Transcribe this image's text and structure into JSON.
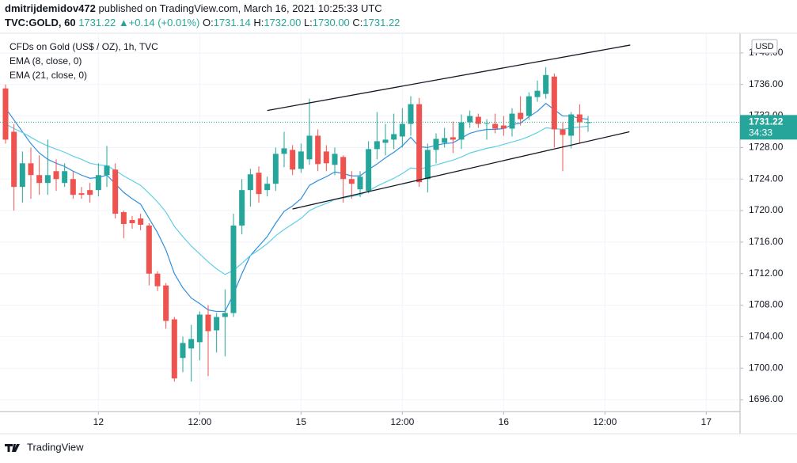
{
  "header": {
    "publisher": "dmitrijdemidov472",
    "published": "published on TradingView.com, March 16, 2021 10:25:33 UTC",
    "quote": {
      "symbol": "TVC:GOLD, 60",
      "last": "1731.22",
      "arrow": "▲",
      "change": "+0.14 (+0.01%)",
      "ohlc": [
        {
          "label": "O:",
          "value": "1731.14"
        },
        {
          "label": "H:",
          "value": "1732.00"
        },
        {
          "label": "L:",
          "value": "1730.00"
        },
        {
          "label": "C:",
          "value": "1731.22"
        }
      ]
    }
  },
  "footer": {
    "brand": "TradingView"
  },
  "chart_data": {
    "type": "candlestick",
    "title": "CFDs on Gold (US$ / OZ), 1h, TVC",
    "currency": "USD",
    "up_color": "#26a69a",
    "down_color": "#ef5350",
    "categories": [
      null,
      null,
      null,
      null,
      null,
      null,
      null,
      null,
      null,
      null,
      null,
      "12",
      null,
      null,
      null,
      null,
      null,
      null,
      null,
      null,
      null,
      null,
      null,
      "12:00",
      null,
      null,
      null,
      null,
      null,
      null,
      null,
      null,
      null,
      null,
      null,
      "15",
      null,
      null,
      null,
      null,
      null,
      null,
      null,
      null,
      null,
      null,
      null,
      "12:00",
      null,
      null,
      null,
      null,
      null,
      null,
      null,
      null,
      null,
      null,
      null,
      "16",
      null,
      null,
      null,
      null,
      null,
      null,
      null,
      null,
      null,
      null,
      null,
      "12:00",
      null,
      null,
      null,
      null,
      null,
      null,
      null,
      null,
      null,
      null,
      null,
      "17",
      null,
      null,
      null
    ],
    "open": [
      1735.5,
      1730,
      1723,
      1726,
      1724.5,
      1723.5,
      1725,
      1723.5,
      1724,
      1722.2,
      1722.6,
      1722.6,
      1724.5,
      1725.2,
      1719.8,
      1718.8,
      1719,
      1718.1,
      1712,
      1710.5,
      1706.2,
      1701.3,
      1702.5,
      1703.3,
      1706.8,
      1704.8,
      1706.5,
      1707,
      1718.1,
      1722.6,
      1724.8,
      1722.6,
      1723.4,
      1727.2,
      1727.7,
      1725.3,
      1726.5,
      1729.5,
      1727.5,
      1725.8,
      1726.8,
      1724,
      1722.7,
      1722.5,
      1727.8,
      1728.6,
      1729,
      1729.4,
      1731,
      1733.5,
      1724,
      1727.7,
      1728.6,
      1729.3,
      1729,
      1731.2,
      1731.9,
      1731,
      1731,
      1730.8,
      1730.4,
      1732.4,
      1732,
      1734.4,
      1734.8,
      1737,
      1730.3,
      1729.5,
      1732.2,
      1731.1,
      null,
      null,
      null,
      null,
      null,
      null,
      null,
      null,
      null,
      null,
      null,
      null,
      null,
      null,
      null,
      null,
      null
    ],
    "high": [
      1736,
      1731,
      1727.5,
      1728,
      1727,
      1729,
      1726.5,
      1726,
      1725,
      1723,
      1723.5,
      1726,
      1728.2,
      1726,
      1720,
      1719.3,
      1719.6,
      1718.4,
      1712.3,
      1710.8,
      1706.5,
      1704,
      1705.5,
      1707.2,
      1708,
      1707,
      1710,
      1719.6,
      1724,
      1725.3,
      1725.6,
      1724.3,
      1728,
      1730,
      1728.3,
      1728.5,
      1734.2,
      1730.3,
      1728.3,
      1728,
      1727,
      1725,
      1725,
      1728.8,
      1732.5,
      1731,
      1732.3,
      1733,
      1734.5,
      1734.3,
      1728.5,
      1729.8,
      1730.5,
      1731.3,
      1732.2,
      1732.7,
      1732.3,
      1731.6,
      1732.3,
      1732,
      1733,
      1734.5,
      1735,
      1736.5,
      1738.2,
      1737.4,
      1731.2,
      1732.5,
      1733.5,
      1732,
      null,
      null,
      null,
      null,
      null,
      null,
      null,
      null,
      null,
      null,
      null,
      null,
      null,
      null,
      null,
      null,
      null
    ],
    "low": [
      1728.5,
      1720,
      1721,
      1721.5,
      1722,
      1722,
      1722.5,
      1723,
      1721.5,
      1721.5,
      1721,
      1721.8,
      1723,
      1719,
      1716.5,
      1717.7,
      1717.5,
      1710.5,
      1709.8,
      1705,
      1698.3,
      1699.5,
      1698.3,
      1701,
      1699,
      1702,
      1701.5,
      1706.5,
      1717,
      1720.5,
      1721,
      1721.8,
      1722.5,
      1725.5,
      1724.5,
      1724.8,
      1725.8,
      1725,
      1725,
      1724.5,
      1721,
      1721.5,
      1721.7,
      1722.2,
      1726.5,
      1727,
      1727.8,
      1728,
      1729.5,
      1723,
      1722.3,
      1726,
      1728,
      1727.3,
      1727.8,
      1730.5,
      1730.5,
      1729,
      1729.8,
      1729.5,
      1729.4,
      1730.8,
      1731.5,
      1733.8,
      1734.2,
      1728,
      1725,
      1727.9,
      1728.6,
      1730,
      null,
      null,
      null,
      null,
      null,
      null,
      null,
      null,
      null,
      null,
      null,
      null,
      null,
      null,
      null,
      null,
      null
    ],
    "close": [
      1729,
      1723,
      1726,
      1724.5,
      1723.5,
      1724.5,
      1724,
      1725,
      1722,
      1722,
      1722,
      1724.5,
      1725.7,
      1719.6,
      1718.3,
      1718.4,
      1718.2,
      1712,
      1710.4,
      1706,
      1698.7,
      1703.2,
      1703.7,
      1706.8,
      1704.7,
      1706.5,
      1707,
      1718.1,
      1722.6,
      1724.6,
      1722.1,
      1723.4,
      1727.2,
      1727.9,
      1725.2,
      1727.5,
      1729.5,
      1725.9,
      1726,
      1727.2,
      1724,
      1723.4,
      1724.3,
      1727.8,
      1728.8,
      1729,
      1729.7,
      1731,
      1733.5,
      1723.6,
      1727.7,
      1729.1,
      1729.2,
      1729,
      1731.2,
      1732,
      1731,
      1731.1,
      1730.4,
      1730.4,
      1732.3,
      1731.6,
      1734.5,
      1735.2,
      1737.2,
      1730.3,
      1729.6,
      1732.2,
      1731.2,
      1731.22,
      null,
      null,
      null,
      null,
      null,
      null,
      null,
      null,
      null,
      null,
      null,
      null,
      null,
      null,
      null,
      null,
      null
    ],
    "series": [
      {
        "name": "EMA (8, close, 0)",
        "color": "#2f8fe0",
        "values": [
          1733,
          1731.5,
          1730,
          1728.5,
          1727.3,
          1726.5,
          1726,
          1725.6,
          1725,
          1724.5,
          1724.1,
          1724.2,
          1724.5,
          1723.4,
          1722.3,
          1721.5,
          1720.8,
          1719,
          1717.2,
          1715,
          1712,
          1710.2,
          1708.9,
          1708.2,
          1707.4,
          1707.2,
          1707.2,
          1709.4,
          1712,
          1714.3,
          1715.5,
          1716.7,
          1718.4,
          1719.9,
          1720.6,
          1721.5,
          1723.2,
          1723.8,
          1724.3,
          1724.9,
          1724.7,
          1724.4,
          1724.4,
          1725.2,
          1725.9,
          1726.7,
          1727.4,
          1728.2,
          1729.3,
          1728.1,
          1728,
          1728.3,
          1728.5,
          1728.6,
          1729.2,
          1729.8,
          1730.1,
          1730.3,
          1730.3,
          1730.4,
          1730.9,
          1731.1,
          1731.9,
          1732.6,
          1733.6,
          1732.8,
          1732,
          1732,
          1731.7,
          1731.6,
          null,
          null,
          null,
          null,
          null,
          null,
          null,
          null,
          null,
          null,
          null,
          null,
          null,
          null,
          null,
          null,
          null
        ]
      },
      {
        "name": "EMA (21, close, 0)",
        "color": "#5fcfe6",
        "values": [
          1731,
          1730.4,
          1729.9,
          1729.3,
          1728.7,
          1728.2,
          1727.8,
          1727.4,
          1726.9,
          1726.5,
          1726,
          1725.8,
          1725.7,
          1725.1,
          1724.4,
          1723.8,
          1723.2,
          1722.2,
          1721.1,
          1719.8,
          1718,
          1716.7,
          1715.5,
          1714.5,
          1713.5,
          1712.6,
          1711.9,
          1712.4,
          1713.3,
          1714.3,
          1715,
          1715.8,
          1716.8,
          1717.6,
          1718.3,
          1719,
          1720,
          1720.5,
          1720.9,
          1721.4,
          1721.6,
          1721.8,
          1722,
          1722.5,
          1723.1,
          1723.6,
          1724.1,
          1724.7,
          1725.4,
          1725.3,
          1725.5,
          1725.8,
          1726.1,
          1726.4,
          1726.8,
          1727.3,
          1727.6,
          1727.9,
          1728.1,
          1728.4,
          1728.7,
          1729,
          1729.4,
          1729.9,
          1730.5,
          1730.4,
          1730.3,
          1730.5,
          1730.6,
          1730.7,
          null,
          null,
          null,
          null,
          null,
          null,
          null,
          null,
          null,
          null,
          null,
          null,
          null,
          null,
          null,
          null,
          null
        ]
      }
    ],
    "trendlines": [
      {
        "x": [
          31,
          74
        ],
        "y": [
          1732.7,
          1741.0
        ]
      },
      {
        "x": [
          34,
          73.9
        ],
        "y": [
          1720.2,
          1730.0
        ]
      }
    ],
    "last_price": {
      "value": 1731.22,
      "label": "1731.22",
      "countdown": "34:33"
    },
    "ylim": [
      1694.5,
      1742.5
    ],
    "yticks": [
      {
        "value": 1696,
        "label": "1696.00"
      },
      {
        "value": 1700,
        "label": "1700.00"
      },
      {
        "value": 1704,
        "label": "1704.00"
      },
      {
        "value": 1708,
        "label": "1708.00"
      },
      {
        "value": 1712,
        "label": "1712.00"
      },
      {
        "value": 1716,
        "label": "1716.00"
      },
      {
        "value": 1720,
        "label": "1720.00"
      },
      {
        "value": 1724,
        "label": "1724.00"
      },
      {
        "value": 1728,
        "label": "1728.00"
      },
      {
        "value": 1732,
        "label": "1732.00"
      },
      {
        "value": 1736,
        "label": "1736.00"
      },
      {
        "value": 1740,
        "label": "1740.00"
      }
    ],
    "grid": true
  }
}
